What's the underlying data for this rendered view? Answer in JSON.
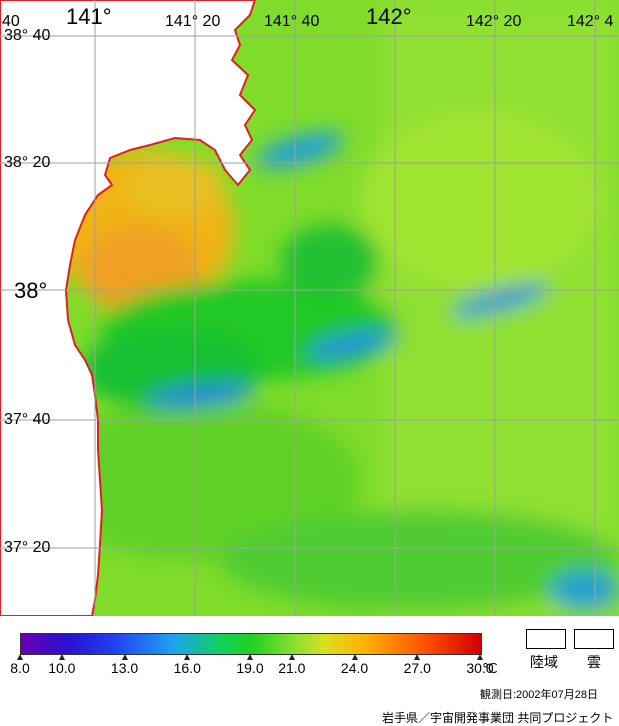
{
  "map": {
    "lon_labels": [
      "141°",
      "141° 20",
      "141° 40",
      "142°",
      "142° 20",
      "142° 4"
    ],
    "lat_labels": [
      "38° 40",
      "38° 20",
      "38°",
      "37° 40",
      "37° 20"
    ],
    "corner_label": "40",
    "colors": {
      "land": "#ffffff",
      "coast": "#e02020",
      "grid": "#a0a0a0"
    }
  },
  "colorbar": {
    "ticks": [
      "8.0",
      "10.0",
      "13.0",
      "16.0",
      "19.0",
      "21.0",
      "24.0",
      "27.0",
      "30.0"
    ],
    "unit": "℃",
    "min": 8.0,
    "max": 30.0
  },
  "legend": {
    "land": "陸域",
    "cloud": "雲"
  },
  "observation": "観測日:2002年07月28日",
  "credit": "岩手県／宇宙開発事業団 共同プロジェクト"
}
